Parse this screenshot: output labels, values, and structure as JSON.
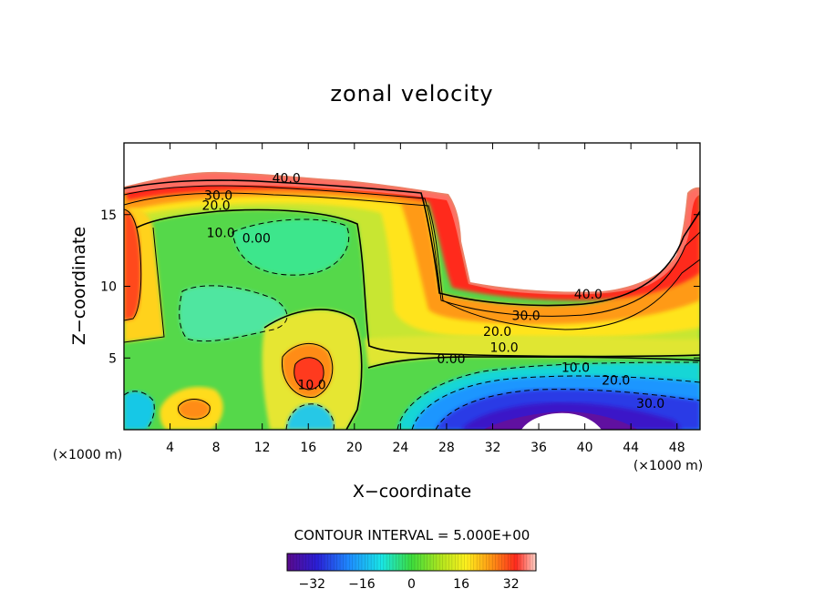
{
  "chart_data": {
    "type": "contour",
    "title": "zonal velocity",
    "xlabel": "X−coordinate",
    "ylabel": "Z−coordinate",
    "x_unit_label": "(×1000 m)",
    "z_unit_label": "(×1000 m)",
    "xlim": [
      0,
      50
    ],
    "zlim": [
      0,
      20
    ],
    "x_ticks": [
      4,
      8,
      12,
      16,
      20,
      24,
      28,
      32,
      36,
      40,
      44,
      48
    ],
    "z_ticks": [
      5,
      10,
      15
    ],
    "contour_interval_text": "CONTOUR INTERVAL = 5.000E+00",
    "contour_interval": 5.0,
    "contour_labels": [
      {
        "text": "40.0",
        "x": 14.1,
        "z": 17.3
      },
      {
        "text": "30.0",
        "x": 8.2,
        "z": 16.1
      },
      {
        "text": "20.0",
        "x": 8.0,
        "z": 15.4
      },
      {
        "text": "10.0",
        "x": 8.4,
        "z": 13.5
      },
      {
        "text": "0.00",
        "x": 11.5,
        "z": 13.1
      },
      {
        "text": "40.0",
        "x": 40.3,
        "z": 9.2
      },
      {
        "text": "30.0",
        "x": 34.9,
        "z": 7.7
      },
      {
        "text": "20.0",
        "x": 32.4,
        "z": 6.6
      },
      {
        "text": "10.0",
        "x": 33.0,
        "z": 5.5
      },
      {
        "text": "0.00",
        "x": 28.4,
        "z": 4.7
      },
      {
        "text": "10.0",
        "x": 16.3,
        "z": 2.9
      },
      {
        "text": "10.0",
        "x": 39.2,
        "z": 4.1
      },
      {
        "text": "20.0",
        "x": 42.7,
        "z": 3.2
      },
      {
        "text": "30.0",
        "x": 45.7,
        "z": 1.6
      }
    ],
    "colorbar": {
      "min": -40,
      "max": 40,
      "ticks": [
        -32,
        -16,
        0,
        16,
        32
      ],
      "tick_labels": [
        "−32",
        "−16",
        "0",
        "16",
        "32"
      ]
    }
  }
}
